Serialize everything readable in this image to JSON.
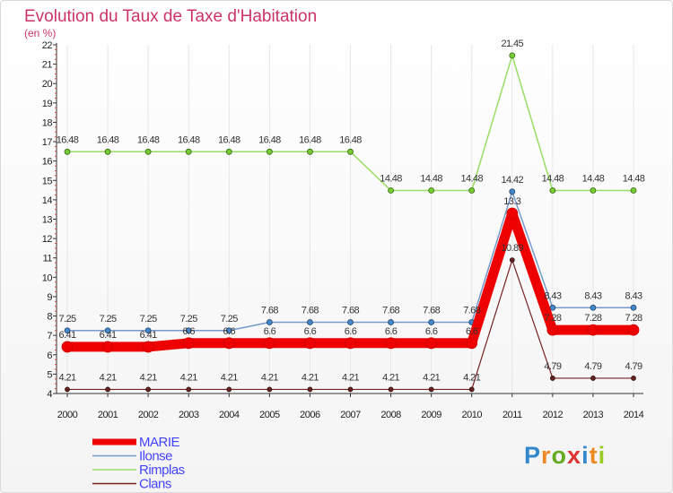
{
  "chart_data": {
    "type": "line",
    "title": "Evolution du Taux de Taxe d'Habitation",
    "subtitle": "(en %)",
    "x": [
      "2000",
      "2001",
      "2002",
      "2003",
      "2004",
      "2005",
      "2006",
      "2007",
      "2008",
      "2009",
      "2010",
      "2011",
      "2012",
      "2013",
      "2014"
    ],
    "yticks": [
      "4",
      "5",
      "6",
      "7",
      "8",
      "9",
      "10",
      "11",
      "12",
      "13",
      "14",
      "15",
      "16",
      "17",
      "18",
      "19",
      "20",
      "21",
      "22"
    ],
    "ylim": [
      4,
      22
    ],
    "grid": "vertical",
    "legend_position": "bottom-left",
    "series": [
      {
        "name": "Rimplas",
        "color": "#99dd66",
        "values": [
          16.48,
          16.48,
          16.48,
          16.48,
          16.48,
          16.48,
          16.48,
          16.48,
          14.48,
          14.48,
          14.48,
          21.45,
          14.48,
          14.48,
          14.48
        ],
        "labels": [
          "16.48",
          "16.48",
          "16.48",
          "16.48",
          "16.48",
          "16.48",
          "16.48",
          "16.48",
          "14.48",
          "14.48",
          "14.48",
          "21.45",
          "14.48",
          "14.48",
          "14.48"
        ]
      },
      {
        "name": "Ilonse",
        "color": "#7799cc",
        "values": [
          7.25,
          7.25,
          7.25,
          7.25,
          7.25,
          7.68,
          7.68,
          7.68,
          7.68,
          7.68,
          7.68,
          14.42,
          8.43,
          8.43,
          8.43
        ],
        "labels": [
          "7.25",
          "7.25",
          "7.25",
          "7.25",
          "7.25",
          "7.68",
          "7.68",
          "7.68",
          "7.68",
          "7.68",
          "7.68",
          "14.42",
          "8.43",
          "8.43",
          "8.43"
        ]
      },
      {
        "name": "MARIE",
        "color": "#ee0000",
        "values": [
          6.41,
          6.41,
          6.41,
          6.6,
          6.6,
          6.6,
          6.6,
          6.6,
          6.6,
          6.6,
          6.6,
          13.3,
          7.28,
          7.28,
          7.28
        ],
        "labels": [
          "6.41",
          "6.41",
          "6.41",
          "6.6",
          "6.6",
          "6.6",
          "6.6",
          "6.6",
          "6.6",
          "6.6",
          "6.6",
          "13.3",
          "7.28",
          "7.28",
          "7.28"
        ]
      },
      {
        "name": "Clans",
        "color": "#772222",
        "values": [
          4.21,
          4.21,
          4.21,
          4.21,
          4.21,
          4.21,
          4.21,
          4.21,
          4.21,
          4.21,
          4.21,
          10.89,
          4.79,
          4.79,
          4.79
        ],
        "labels": [
          "4.21",
          "4.21",
          "4.21",
          "4.21",
          "4.21",
          "4.21",
          "4.21",
          "4.21",
          "4.21",
          "4.21",
          "4.21",
          "10.89",
          "4.79",
          "4.79",
          "4.79"
        ]
      }
    ],
    "legend": [
      "MARIE",
      "Ilonse",
      "Rimplas",
      "Clans"
    ]
  },
  "logo": {
    "text": "Proxiti"
  },
  "colors": {
    "title": "#cc3366",
    "legend_text": "#4444ff",
    "marie": "#ee0000"
  }
}
